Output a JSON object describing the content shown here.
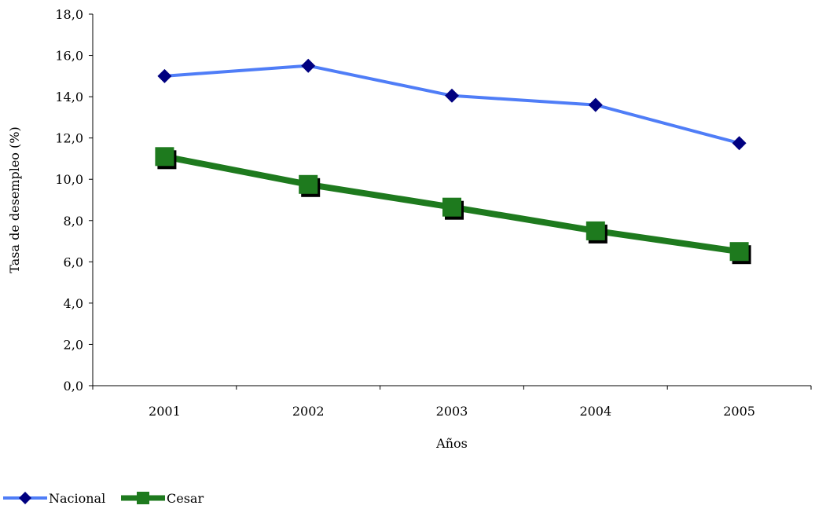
{
  "chart_data": {
    "type": "line",
    "categories": [
      "2001",
      "2002",
      "2003",
      "2004",
      "2005"
    ],
    "series": [
      {
        "name": "Nacional",
        "values": [
          15.0,
          15.5,
          14.05,
          13.6,
          11.75
        ],
        "color": "#4F7DF7",
        "marker": "diamond",
        "marker_color": "#000080"
      },
      {
        "name": "Cesar",
        "values": [
          11.1,
          9.75,
          8.65,
          7.5,
          6.5
        ],
        "color": "#1E7A1E",
        "marker": "square",
        "marker_color": "#1E7A1E"
      }
    ],
    "xlabel": "Años",
    "ylabel": "Tasa de desempleo (%)",
    "ylim": [
      0,
      18
    ],
    "yticks": [
      "0,0",
      "2,0",
      "4,0",
      "6,0",
      "8,0",
      "10,0",
      "12,0",
      "14,0",
      "16,0",
      "18,0"
    ],
    "grid": false,
    "legend_position": "bottom-left"
  }
}
